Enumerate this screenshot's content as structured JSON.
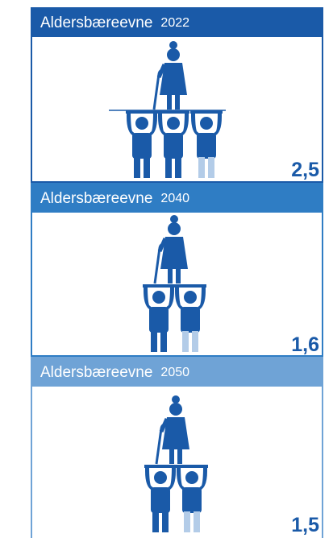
{
  "panels": [
    {
      "title": "Aldersbæreevne",
      "year": "2022",
      "value": "2,5"
    },
    {
      "title": "Aldersbæreevne",
      "year": "2040",
      "value": "1,6"
    },
    {
      "title": "Aldersbæreevne",
      "year": "2050",
      "value": "1,5"
    }
  ]
}
